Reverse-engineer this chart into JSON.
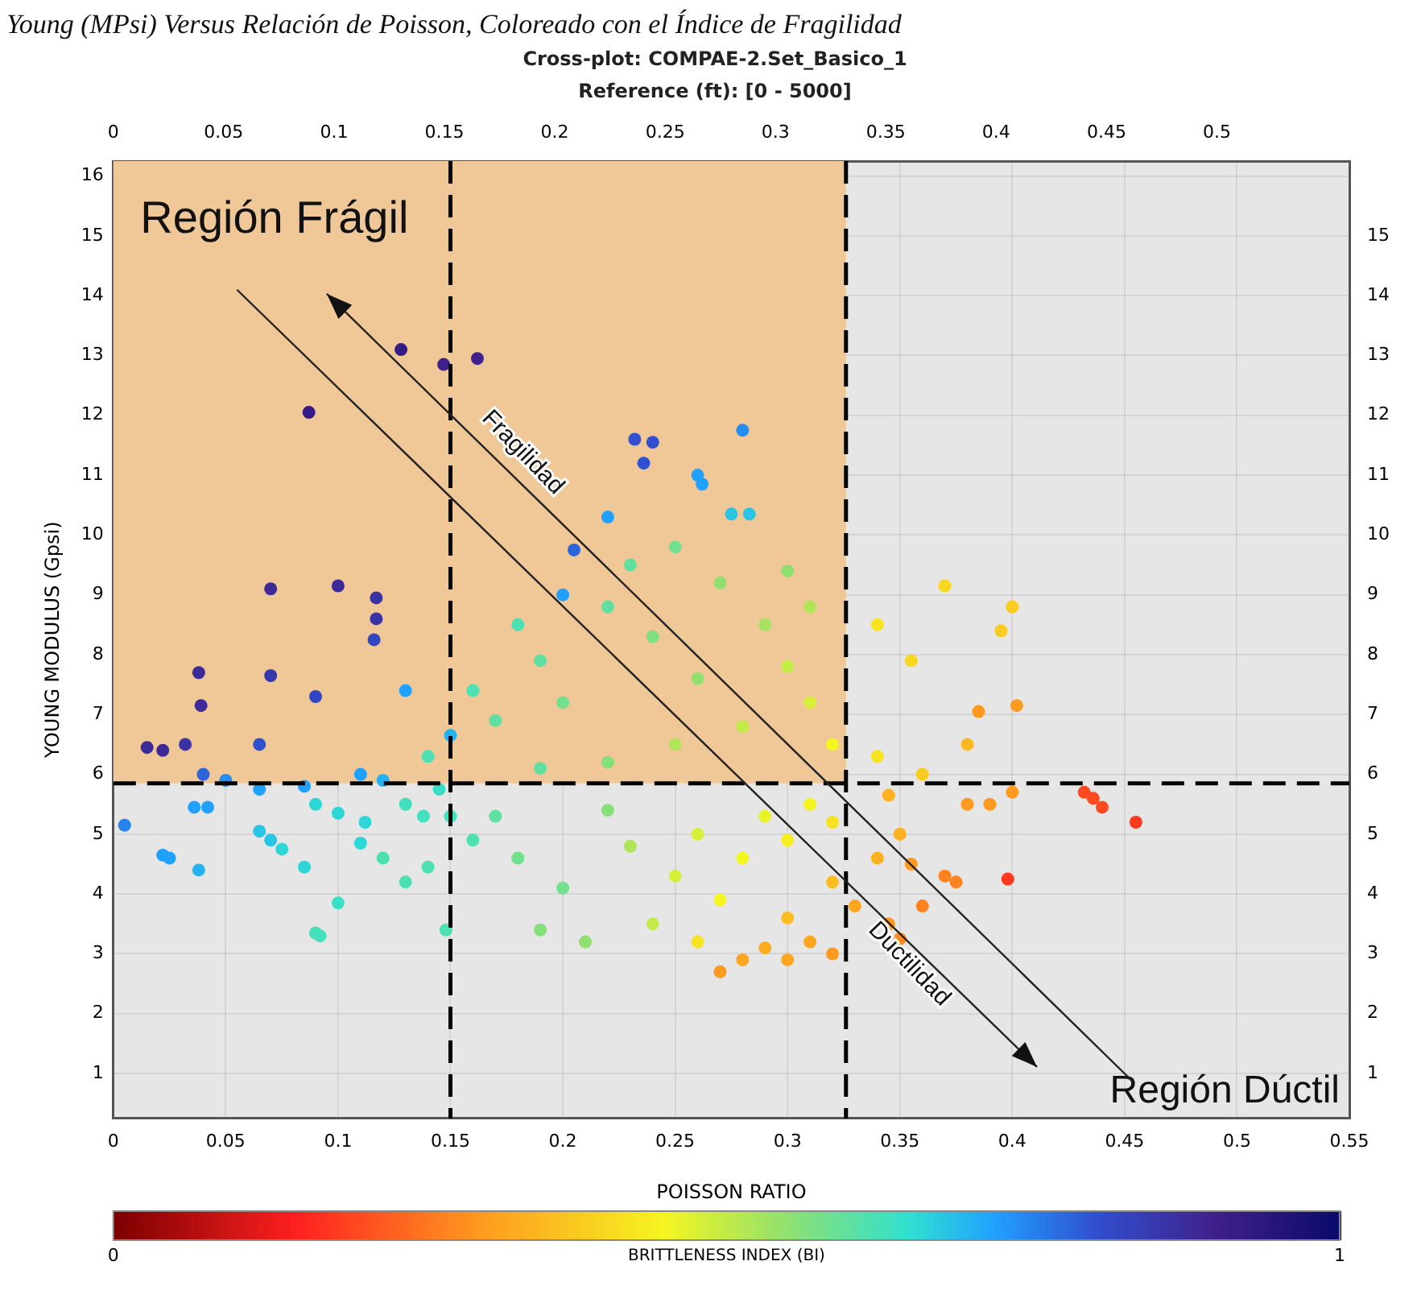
{
  "chart_data": {
    "type": "scatter",
    "title": "Cross-plot: COMPAE-2.Set_Basico_1",
    "subtitle": "Reference (ft): [0 - 5000]",
    "xlabel": "POISSON RATIO",
    "ylabel": "YOUNG MODULUS (Gpsi)",
    "clabel": "BRITTLENESS INDEX (BI)",
    "annotations": [
      "Young (MPsi) Versus Relación de Poisson, Coloreado con el Índice de Fragilidad",
      "Región Frágil",
      "Fragilidad",
      "Ductilidad",
      "Región Dúctil"
    ],
    "x": [
      0.087,
      0.128,
      0.147,
      0.162,
      0.07,
      0.1,
      0.117,
      0.117,
      0.116,
      0.038,
      0.039,
      0.07,
      0.09,
      0.015,
      0.022,
      0.032,
      0.065,
      0.04,
      0.005,
      0.036,
      0.042,
      0.065,
      0.085,
      0.022,
      0.025,
      0.038,
      0.065,
      0.07,
      0.075,
      0.085,
      0.112,
      0.11,
      0.1,
      0.09,
      0.092,
      0.12,
      0.13,
      0.14,
      0.148,
      0.13,
      0.138,
      0.205,
      0.232,
      0.24,
      0.236,
      0.28,
      0.26,
      0.262,
      0.275,
      0.283,
      0.22,
      0.2,
      0.13,
      0.15,
      0.11,
      0.12,
      0.05,
      0.18,
      0.19,
      0.16,
      0.17,
      0.14,
      0.2,
      0.22,
      0.23,
      0.24,
      0.25,
      0.27,
      0.26,
      0.29,
      0.3,
      0.31,
      0.32,
      0.28,
      0.25,
      0.22,
      0.19,
      0.3,
      0.31,
      0.34,
      0.37,
      0.4,
      0.395,
      0.355,
      0.385,
      0.402,
      0.38,
      0.34,
      0.36,
      0.17,
      0.18,
      0.2,
      0.19,
      0.21,
      0.22,
      0.23,
      0.24,
      0.25,
      0.26,
      0.27,
      0.28,
      0.29,
      0.3,
      0.31,
      0.32,
      0.26,
      0.3,
      0.32,
      0.33,
      0.28,
      0.29,
      0.3,
      0.31,
      0.32,
      0.27,
      0.34,
      0.35,
      0.345,
      0.355,
      0.37,
      0.375,
      0.36,
      0.35,
      0.38,
      0.39,
      0.4,
      0.345,
      0.432,
      0.436,
      0.44,
      0.455,
      0.398,
      0.09,
      0.1,
      0.145,
      0.15,
      0.16
    ],
    "values": [
      12.05,
      13.1,
      12.85,
      12.95,
      9.1,
      9.15,
      8.95,
      8.6,
      8.25,
      7.7,
      7.15,
      7.65,
      7.3,
      6.45,
      6.4,
      6.5,
      6.5,
      6.0,
      5.15,
      5.45,
      5.45,
      5.75,
      5.8,
      4.65,
      4.6,
      4.4,
      5.05,
      4.9,
      4.75,
      4.45,
      5.2,
      4.85,
      3.85,
      3.35,
      3.3,
      4.6,
      4.2,
      4.45,
      3.4,
      5.5,
      5.3,
      9.75,
      11.6,
      11.55,
      11.2,
      11.75,
      11.0,
      10.85,
      10.35,
      10.35,
      10.3,
      9.0,
      7.4,
      6.65,
      6.0,
      5.9,
      5.9,
      8.5,
      7.9,
      7.4,
      6.9,
      6.3,
      7.2,
      8.8,
      9.5,
      8.3,
      9.8,
      9.2,
      7.6,
      8.5,
      7.8,
      7.2,
      6.5,
      6.8,
      6.5,
      6.2,
      6.1,
      9.4,
      8.8,
      8.5,
      9.15,
      8.8,
      8.4,
      7.9,
      7.05,
      7.15,
      6.5,
      6.3,
      6.0,
      5.3,
      4.6,
      4.1,
      3.4,
      3.2,
      5.4,
      4.8,
      3.5,
      4.3,
      5.0,
      3.9,
      4.6,
      5.3,
      4.9,
      5.5,
      5.2,
      3.2,
      3.6,
      4.2,
      3.8,
      2.9,
      3.1,
      2.9,
      3.2,
      3.0,
      2.7,
      4.6,
      5.0,
      3.5,
      4.5,
      4.3,
      4.2,
      3.8,
      3.25,
      5.5,
      5.5,
      5.7,
      5.65,
      5.7,
      5.6,
      5.45,
      5.2,
      4.25,
      5.5,
      5.35,
      5.75,
      5.3,
      4.9
    ],
    "cvalues": [
      0.92,
      0.92,
      0.9,
      0.9,
      0.88,
      0.88,
      0.86,
      0.86,
      0.82,
      0.88,
      0.88,
      0.85,
      0.82,
      0.88,
      0.88,
      0.86,
      0.8,
      0.78,
      0.75,
      0.72,
      0.72,
      0.72,
      0.72,
      0.72,
      0.72,
      0.7,
      0.68,
      0.68,
      0.66,
      0.66,
      0.66,
      0.66,
      0.64,
      0.63,
      0.63,
      0.62,
      0.62,
      0.62,
      0.62,
      0.63,
      0.63,
      0.78,
      0.8,
      0.8,
      0.8,
      0.74,
      0.72,
      0.72,
      0.68,
      0.68,
      0.72,
      0.72,
      0.72,
      0.7,
      0.72,
      0.7,
      0.74,
      0.62,
      0.6,
      0.62,
      0.6,
      0.62,
      0.58,
      0.6,
      0.6,
      0.57,
      0.58,
      0.55,
      0.55,
      0.53,
      0.5,
      0.48,
      0.45,
      0.5,
      0.52,
      0.56,
      0.6,
      0.55,
      0.52,
      0.42,
      0.4,
      0.38,
      0.38,
      0.4,
      0.3,
      0.3,
      0.35,
      0.42,
      0.38,
      0.6,
      0.58,
      0.58,
      0.56,
      0.55,
      0.56,
      0.52,
      0.5,
      0.48,
      0.48,
      0.45,
      0.45,
      0.46,
      0.44,
      0.45,
      0.42,
      0.42,
      0.36,
      0.36,
      0.32,
      0.32,
      0.33,
      0.32,
      0.32,
      0.3,
      0.3,
      0.34,
      0.34,
      0.3,
      0.3,
      0.27,
      0.27,
      0.27,
      0.28,
      0.3,
      0.3,
      0.3,
      0.34,
      0.2,
      0.2,
      0.2,
      0.18,
      0.18,
      0.66,
      0.66,
      0.64,
      0.63,
      0.62
    ],
    "xlim": [
      0,
      0.55
    ],
    "xticks": [
      0,
      0.05,
      0.1,
      0.15,
      0.2,
      0.25,
      0.3,
      0.35,
      0.4,
      0.45,
      0.5,
      0.55
    ],
    "x2lim": [
      0,
      0.56
    ],
    "x2ticks": [
      0,
      0.05,
      0.1,
      0.15,
      0.2,
      0.25,
      0.3,
      0.35,
      0.4,
      0.45,
      0.5
    ],
    "ylim": [
      0.25,
      16.25
    ],
    "yticks": [
      1,
      2,
      3,
      4,
      5,
      6,
      7,
      8,
      9,
      10,
      11,
      12,
      13,
      14,
      15,
      16
    ],
    "y2lim": [
      0.25,
      16.25
    ],
    "y2ticks": [
      1,
      2,
      3,
      4,
      5,
      6,
      7,
      8,
      9,
      10,
      11,
      12,
      13,
      14,
      15
    ],
    "clim": [
      0,
      1
    ],
    "cticks": [
      0,
      1
    ],
    "ref_lines": [
      {
        "axis": "y",
        "value": 5.85,
        "color": "#000000",
        "line_style": "dashed"
      },
      {
        "axis": "x",
        "value": 0.326,
        "color": "#000000",
        "line_style": "dashed"
      },
      {
        "axis": "x",
        "value": 0.15,
        "color": "#000000",
        "line_style": "dashed"
      }
    ],
    "bands": [
      {
        "axis": "y",
        "from": 5.85,
        "to": 16.25,
        "color": "#f0c898"
      }
    ],
    "grid": true,
    "legend": false,
    "marker": "circle"
  }
}
